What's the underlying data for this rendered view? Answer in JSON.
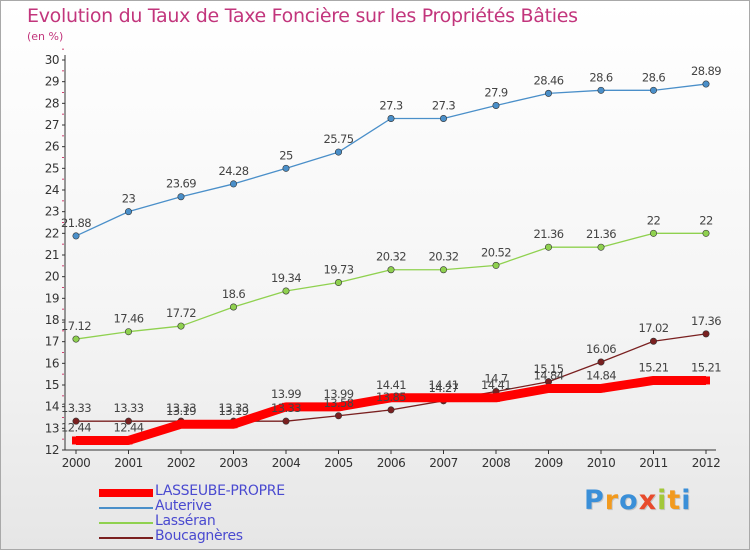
{
  "title": "Evolution du Taux de Taxe Foncière sur les Propriétés Bâties",
  "subtitle": "(en %)",
  "logo": {
    "text": "Proxiti",
    "letters": [
      "P",
      "r",
      "o",
      "x",
      "i",
      "t",
      "i"
    ],
    "colors": [
      "#3a8fd8",
      "#f29a1e",
      "#3a8fd8",
      "#e84b2c",
      "#a3c83a",
      "#f29a1e",
      "#3a8fd8"
    ]
  },
  "chart_data": {
    "type": "line",
    "x": [
      "2000",
      "2001",
      "2002",
      "2003",
      "2004",
      "2005",
      "2006",
      "2007",
      "2008",
      "2009",
      "2010",
      "2011",
      "2012"
    ],
    "ylim": [
      12,
      30
    ],
    "yticks": [
      "12",
      "13",
      "14",
      "15",
      "16",
      "17",
      "18",
      "19",
      "20",
      "21",
      "22",
      "23",
      "24",
      "25",
      "26",
      "27",
      "28",
      "29",
      "30"
    ],
    "grid": false,
    "legend_position": "bottom-left",
    "series": [
      {
        "name": "LASSEUBE-PROPRE",
        "color": "#ff0000",
        "values": [
          12.44,
          12.44,
          13.19,
          13.19,
          13.99,
          13.99,
          14.41,
          14.41,
          14.41,
          14.84,
          14.84,
          15.21,
          15.21
        ],
        "labels": [
          "12.44",
          "12.44",
          "13.19",
          "13.19",
          "13.99",
          "13.99",
          "14.41",
          "14.41",
          "14.41",
          "14.84",
          "14.84",
          "15.21",
          "15.21"
        ]
      },
      {
        "name": "Auterive",
        "color": "#4a8fc9",
        "values": [
          21.88,
          23,
          23.69,
          24.28,
          25,
          25.75,
          27.3,
          27.3,
          27.9,
          28.46,
          28.6,
          28.6,
          28.89
        ],
        "labels": [
          "21.88",
          "23",
          "23.69",
          "24.28",
          "25",
          "25.75",
          "27.3",
          "27.3",
          "27.9",
          "28.46",
          "28.6",
          "28.6",
          "28.89"
        ]
      },
      {
        "name": "Lasséran",
        "color": "#8fd14f",
        "values": [
          17.12,
          17.46,
          17.72,
          18.6,
          19.34,
          19.73,
          20.32,
          20.32,
          20.52,
          21.36,
          21.36,
          22,
          22
        ],
        "labels": [
          "17.12",
          "17.46",
          "17.72",
          "18.6",
          "19.34",
          "19.73",
          "20.32",
          "20.32",
          "20.52",
          "21.36",
          "21.36",
          "22",
          "22"
        ]
      },
      {
        "name": "Boucagnères",
        "color": "#7a2020",
        "values": [
          13.33,
          13.33,
          13.33,
          13.33,
          13.33,
          13.58,
          13.85,
          14.27,
          14.7,
          15.15,
          16.06,
          17.02,
          17.36
        ],
        "labels": [
          "13.33",
          "13.33",
          "13.33",
          "13.33",
          "13.33",
          "13.58",
          "13.85",
          "14.27",
          "14.7",
          "15.15",
          "16.06",
          "17.02",
          "17.36"
        ]
      }
    ]
  }
}
